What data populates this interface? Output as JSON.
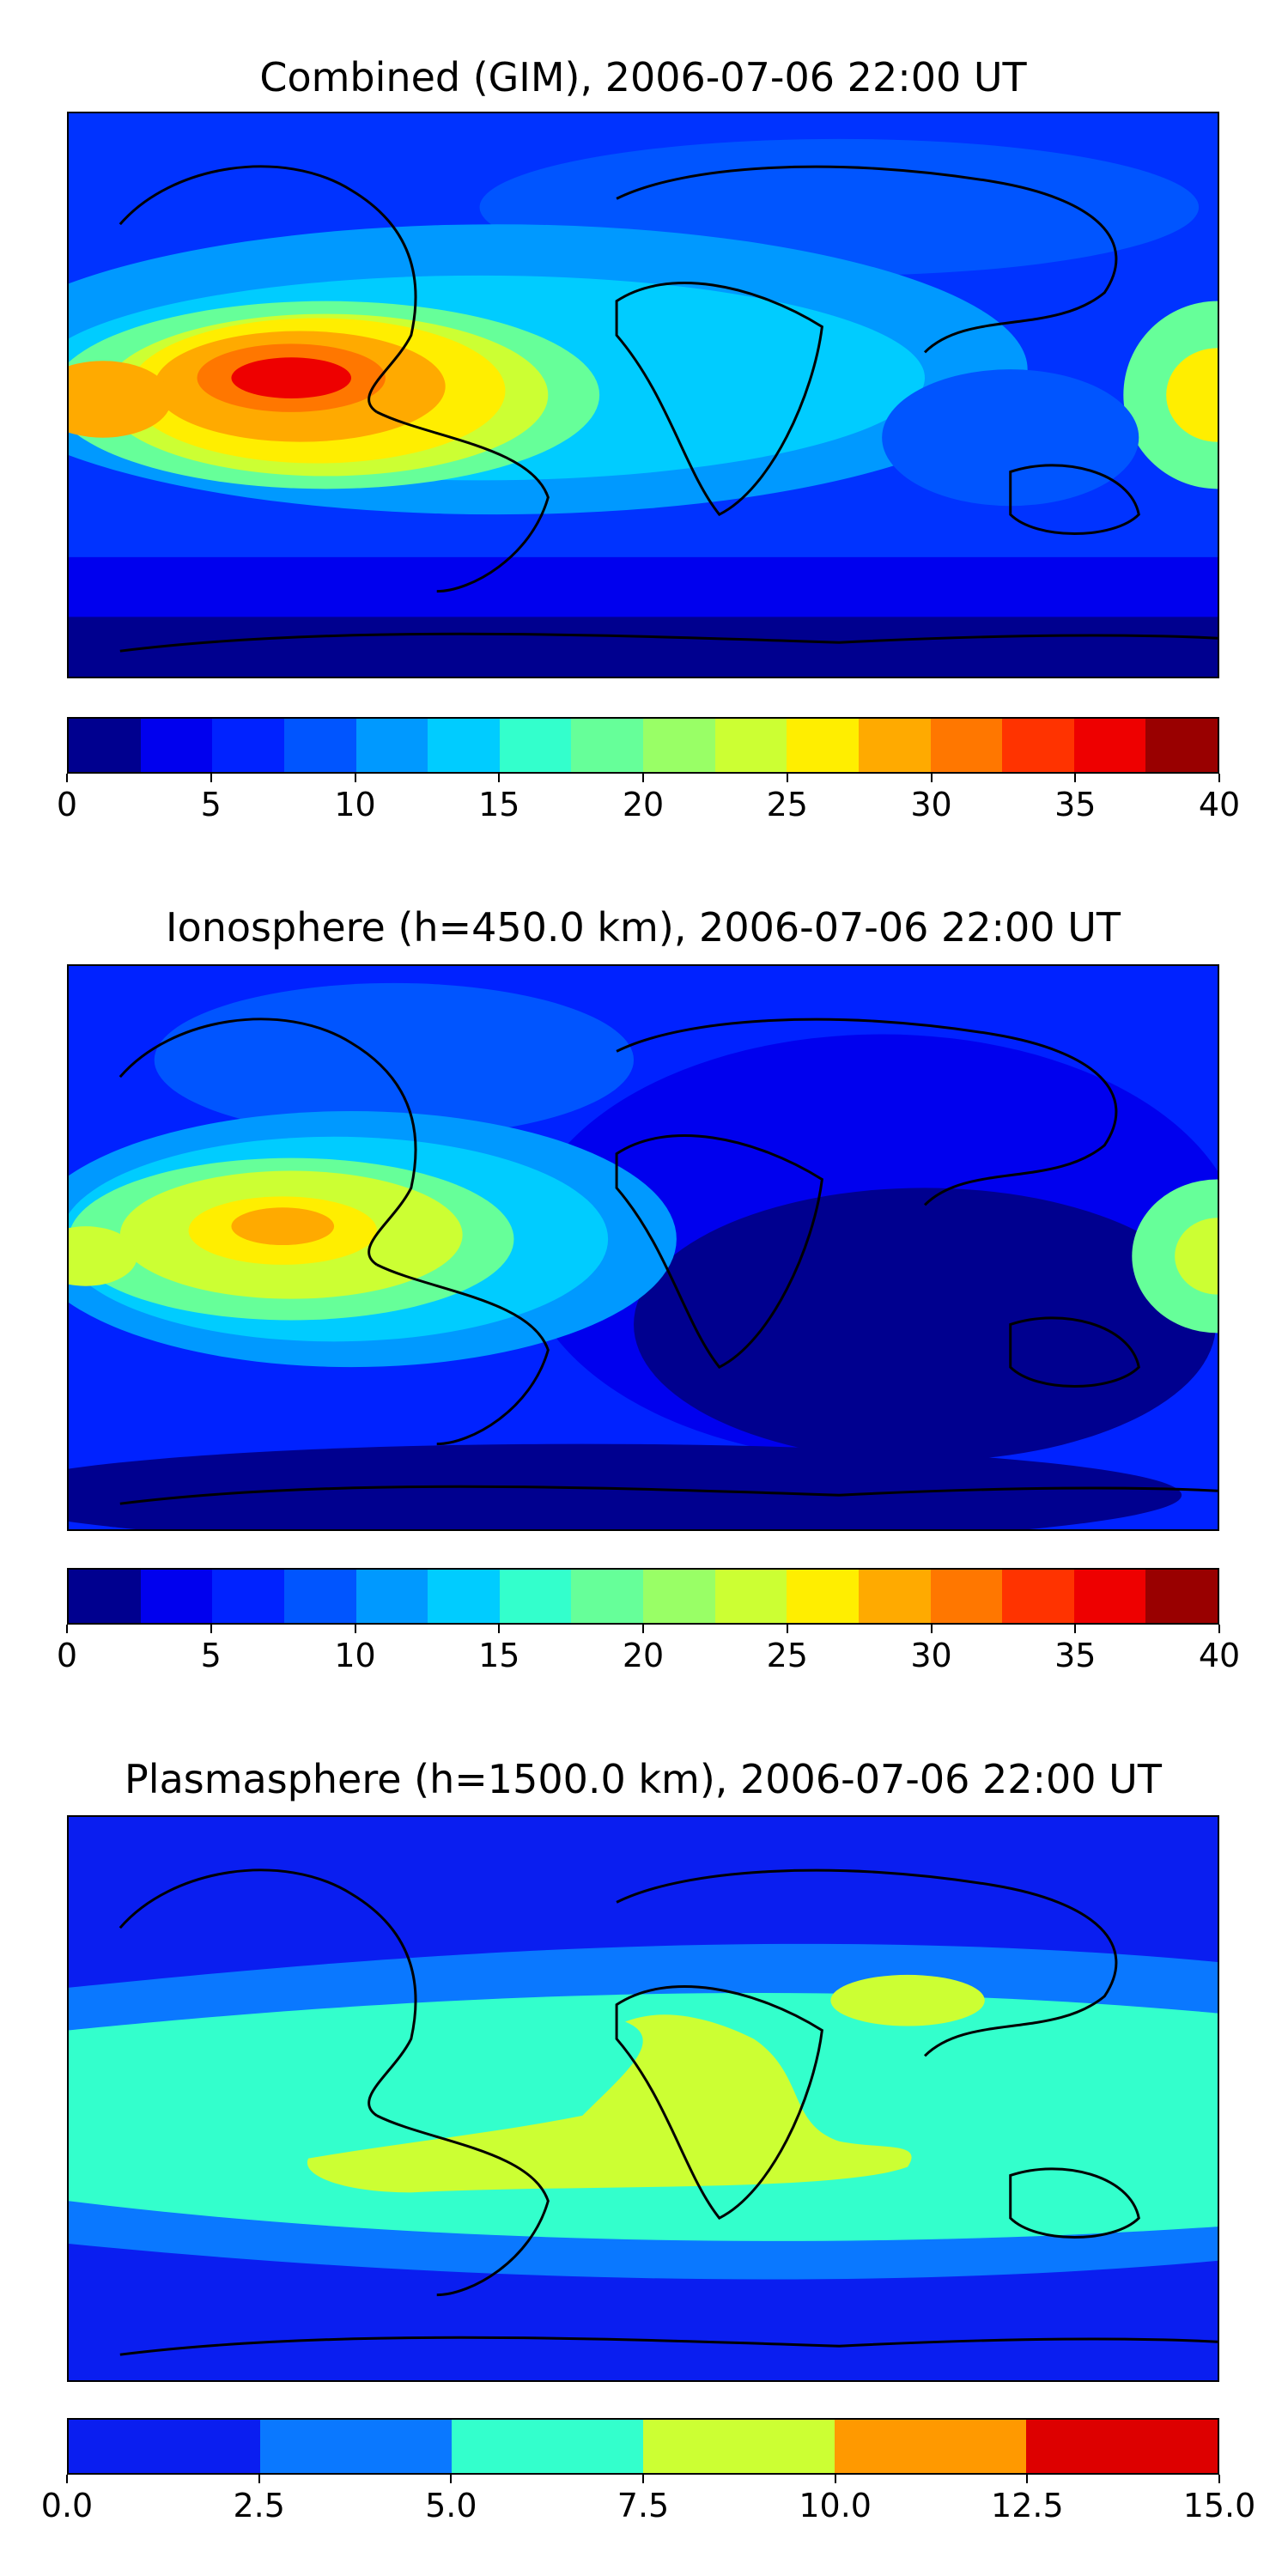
{
  "panels": [
    {
      "title": "Combined (GIM), 2006-07-06 22:00 UT",
      "colorbar": {
        "min": 0,
        "max": 40,
        "colors": [
          "#00008f",
          "#0000ee",
          "#0022ff",
          "#0055ff",
          "#0099ff",
          "#00ccff",
          "#33ffcc",
          "#66ff99",
          "#99ff66",
          "#ccff33",
          "#ffee00",
          "#ffaa00",
          "#ff7700",
          "#ff3300",
          "#ee0000",
          "#990000"
        ],
        "tick_labels": [
          "0",
          "5",
          "10",
          "15",
          "20",
          "25",
          "30",
          "35",
          "40"
        ]
      }
    },
    {
      "title": "Ionosphere  (h=450.0 km), 2006-07-06 22:00 UT",
      "colorbar": {
        "min": 0,
        "max": 40,
        "colors": [
          "#00008f",
          "#0000ee",
          "#0022ff",
          "#0055ff",
          "#0099ff",
          "#00ccff",
          "#33ffcc",
          "#66ff99",
          "#99ff66",
          "#ccff33",
          "#ffee00",
          "#ffaa00",
          "#ff7700",
          "#ff3300",
          "#ee0000",
          "#990000"
        ],
        "tick_labels": [
          "0",
          "5",
          "10",
          "15",
          "20",
          "25",
          "30",
          "35",
          "40"
        ]
      }
    },
    {
      "title": "Plasmasphere (h=1500.0 km), 2006-07-06 22:00 UT",
      "colorbar": {
        "min": 0.0,
        "max": 15.0,
        "colors": [
          "#0a1ef0",
          "#0a78ff",
          "#33ffcc",
          "#ccff33",
          "#ff9900",
          "#dd0000"
        ],
        "tick_labels": [
          "0.0",
          "2.5",
          "5.0",
          "7.5",
          "10.0",
          "12.5",
          "15.0"
        ]
      }
    }
  ]
}
